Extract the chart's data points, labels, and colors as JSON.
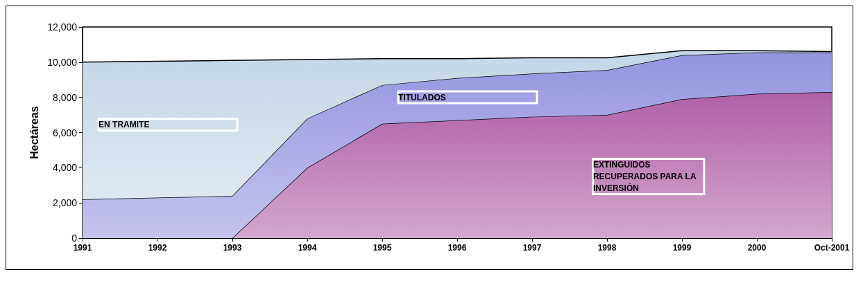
{
  "chart_data": {
    "type": "area",
    "stacked": true,
    "ylabel": "Hectáreas",
    "categories": [
      "1991",
      "1992",
      "1993",
      "1994",
      "1995",
      "1996",
      "1997",
      "1998",
      "1999",
      "2000",
      "Oct-2001"
    ],
    "series": [
      {
        "name": "EXTINGUIDOS RECUPERADOS PARA LA INVERSIÓN",
        "color": "#b060a8",
        "values": [
          0,
          0,
          0,
          4000,
          6500,
          6700,
          6900,
          7000,
          7900,
          8200,
          8300
        ]
      },
      {
        "name": "TITULADOS",
        "color": "#9494e0",
        "values": [
          2200,
          2300,
          2400,
          2800,
          2200,
          2400,
          2450,
          2550,
          2500,
          2350,
          2250
        ]
      },
      {
        "name": "EN TRAMITE",
        "color": "#c4d6e6",
        "values": [
          7800,
          7750,
          7700,
          3350,
          1500,
          1100,
          900,
          700,
          250,
          100,
          50
        ]
      }
    ],
    "ylim": [
      0,
      12000
    ],
    "yticks": [
      {
        "value": 0,
        "label": "0"
      },
      {
        "value": 2000,
        "label": "2,000"
      },
      {
        "value": 4000,
        "label": "4,000"
      },
      {
        "value": 6000,
        "label": "6,000"
      },
      {
        "value": 8000,
        "label": "8,000"
      },
      {
        "value": 10000,
        "label": "10,000"
      },
      {
        "value": 12000,
        "label": "12,000"
      }
    ],
    "grid": false,
    "legend": false
  }
}
